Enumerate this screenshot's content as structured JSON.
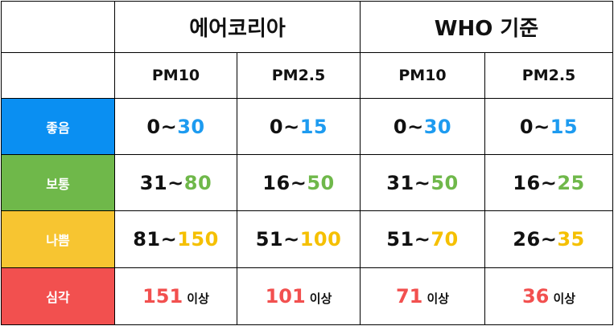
{
  "header": {
    "airkorea": "에어코리아",
    "who": "WHO 기준",
    "pm10": "PM10",
    "pm25": "PM2.5"
  },
  "colors": {
    "good": "#0a8ff2",
    "normal": "#6fb84a",
    "bad": "#f7c531",
    "very_bad": "#f2504f",
    "good_text": "#1d9bf0",
    "normal_text": "#6fb84a",
    "bad_text": "#f5c000",
    "very_bad_text": "#f2504f"
  },
  "rows": [
    {
      "level": "좋음",
      "cells": [
        {
          "lo": "0~",
          "hi": "30"
        },
        {
          "lo": "0~",
          "hi": "15"
        },
        {
          "lo": "0~",
          "hi": "30"
        },
        {
          "lo": "0~",
          "hi": "15"
        }
      ]
    },
    {
      "level": "보통",
      "cells": [
        {
          "lo": "31~",
          "hi": "80"
        },
        {
          "lo": "16~",
          "hi": "50"
        },
        {
          "lo": "31~",
          "hi": "50"
        },
        {
          "lo": "16~",
          "hi": "25"
        }
      ]
    },
    {
      "level": "나쁨",
      "cells": [
        {
          "lo": "81~",
          "hi": "150"
        },
        {
          "lo": "51~",
          "hi": "100"
        },
        {
          "lo": "51~",
          "hi": "70"
        },
        {
          "lo": "26~",
          "hi": "35"
        }
      ]
    },
    {
      "level": "심각",
      "cells": [
        {
          "num": "151",
          "suffix": "이상"
        },
        {
          "num": "101",
          "suffix": "이상"
        },
        {
          "num": "71",
          "suffix": "이상"
        },
        {
          "num": "36",
          "suffix": "이상"
        }
      ]
    }
  ]
}
